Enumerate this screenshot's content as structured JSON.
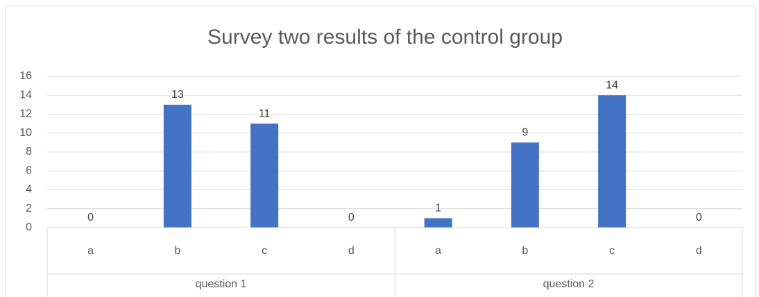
{
  "chart_data": {
    "type": "bar",
    "title": "Survey two results of the control group",
    "categories": [
      "a",
      "b",
      "c",
      "d",
      "a",
      "b",
      "c",
      "d"
    ],
    "groups": [
      "question 1",
      "question 2"
    ],
    "values": [
      0,
      13,
      11,
      0,
      1,
      9,
      14,
      0
    ],
    "color": "#4472c4",
    "ylim": [
      0,
      16
    ],
    "yticks": [
      0,
      2,
      4,
      6,
      8,
      10,
      12,
      14,
      16
    ],
    "grid": true
  }
}
